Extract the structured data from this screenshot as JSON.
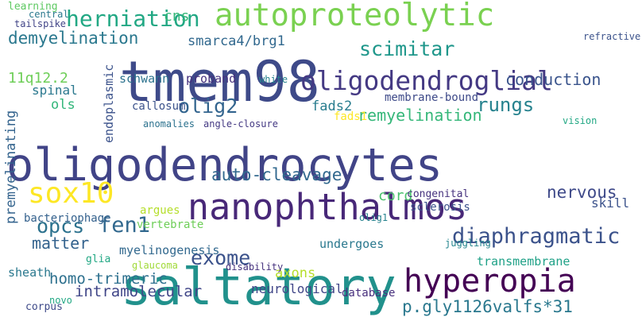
{
  "words": [
    {
      "text": "oligodendrocytes",
      "color": "#414487"
    },
    {
      "text": "saltatory",
      "color": "#21918c"
    },
    {
      "text": "tmem98",
      "color": "#3e4a89"
    },
    {
      "text": "nanophthalmos",
      "color": "#482878"
    },
    {
      "text": "autoproteolytic",
      "color": "#7ad151"
    },
    {
      "text": "oligodendroglial",
      "color": "#443983"
    },
    {
      "text": "hyperopia",
      "color": "#440154"
    },
    {
      "text": "diaphragmatic",
      "color": "#3b528b"
    },
    {
      "text": "herniation",
      "color": "#22a884"
    },
    {
      "text": "demyelination",
      "color": "#2a788e"
    },
    {
      "text": "sox10",
      "color": "#fde725"
    },
    {
      "text": "fen1",
      "color": "#31688e"
    },
    {
      "text": "exome",
      "color": "#3b528b"
    },
    {
      "text": "opcs",
      "color": "#2c728e"
    },
    {
      "text": "olig2",
      "color": "#32648e"
    },
    {
      "text": "scimitar",
      "color": "#1f978b"
    },
    {
      "text": "rungs",
      "color": "#26828e"
    },
    {
      "text": "conduction",
      "color": "#3a548c"
    },
    {
      "text": "auto-cleavage",
      "color": "#31688e"
    },
    {
      "text": "remyelination",
      "color": "#35b779"
    },
    {
      "text": "homo-trimeric",
      "color": "#2d708e"
    },
    {
      "text": "p.gly1126valfs*31",
      "color": "#2a788e"
    },
    {
      "text": "smarca4/brg1",
      "color": "#31688e"
    },
    {
      "text": "nervous",
      "color": "#3e4989"
    },
    {
      "text": "matter",
      "color": "#33628d"
    },
    {
      "text": "premyelinating",
      "color": "#33638d"
    },
    {
      "text": "cns",
      "color": "#35b779"
    },
    {
      "text": "fads2",
      "color": "#287c8e"
    },
    {
      "text": "11q12.2",
      "color": "#6ece58"
    },
    {
      "text": "schwann",
      "color": "#2c728e"
    },
    {
      "text": "intramolecular",
      "color": "#404688"
    },
    {
      "text": "myelinogenesis",
      "color": "#31688e"
    },
    {
      "text": "cord",
      "color": "#4ac16d"
    },
    {
      "text": "axons",
      "color": "#b5de2b"
    },
    {
      "text": "undergoes",
      "color": "#2a788e"
    },
    {
      "text": "transmembrane",
      "color": "#1fa187"
    },
    {
      "text": "sheath",
      "color": "#2a788e"
    },
    {
      "text": "neurological",
      "color": "#404688"
    },
    {
      "text": "bacteriophage",
      "color": "#34618d"
    },
    {
      "text": "vertebrate",
      "color": "#6ece58"
    },
    {
      "text": "argues",
      "color": "#b5de2b"
    },
    {
      "text": "fads1",
      "color": "#fde725"
    },
    {
      "text": "membrane-bound",
      "color": "#3e4a89"
    },
    {
      "text": "spinal",
      "color": "#2a788e"
    },
    {
      "text": "proband",
      "color": "#46327e"
    },
    {
      "text": "callosum",
      "color": "#3b528b"
    },
    {
      "text": "ols",
      "color": "#32b67a"
    },
    {
      "text": "glia",
      "color": "#22a884"
    },
    {
      "text": "skill",
      "color": "#3b528b"
    },
    {
      "text": "sclerosis",
      "color": "#3b528b"
    },
    {
      "text": "database",
      "color": "#472f7d"
    },
    {
      "text": "angle-closure",
      "color": "#443983"
    },
    {
      "text": "endoplasmic",
      "color": "#3b528b"
    },
    {
      "text": "learning",
      "color": "#5ec962"
    },
    {
      "text": "tailspike",
      "color": "#414487"
    },
    {
      "text": "corpus",
      "color": "#3e4a89"
    },
    {
      "text": "novo",
      "color": "#22a884"
    },
    {
      "text": "glaucoma",
      "color": "#a0da39"
    },
    {
      "text": "disability",
      "color": "#46337e"
    },
    {
      "text": "congenital",
      "color": "#46327e"
    },
    {
      "text": "juggling",
      "color": "#25858e"
    },
    {
      "text": "vision",
      "color": "#22a884"
    },
    {
      "text": "refractive",
      "color": "#3b528b"
    },
    {
      "text": "central",
      "color": "#2a788e"
    },
    {
      "text": "anomalies",
      "color": "#2c728e"
    },
    {
      "text": "white",
      "color": "#26828e"
    },
    {
      "text": "olig1",
      "color": "#26828e"
    }
  ]
}
